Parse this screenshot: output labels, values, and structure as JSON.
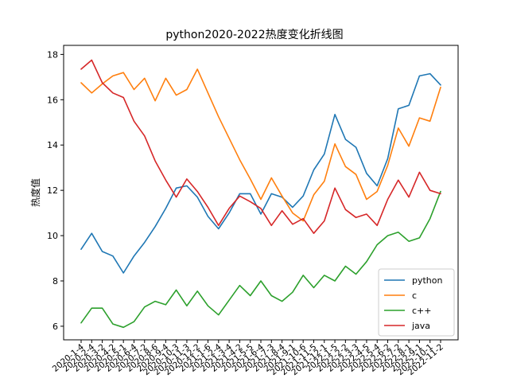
{
  "chart_data": {
    "type": "line",
    "title": "python2020-2022热度变化折线图",
    "xlabel": "",
    "ylabel": "热度值",
    "ylim": [
      5.4,
      18.4
    ],
    "yticks": [
      6,
      8,
      10,
      12,
      14,
      16,
      18
    ],
    "legend_position": "bottom-right",
    "grid": false,
    "categories": [
      "2020-1-4",
      "2020-2-4",
      "2020-3-2",
      "2020-4-2",
      "2020-5-1",
      "2020-6-4",
      "2020-7-2",
      "2020-8-6",
      "2020-9-4",
      "2020-10-3",
      "2020-11-3",
      "2020-12-2",
      "2021-1-6",
      "2021-2-4",
      "2021-3-4",
      "2021-4-2",
      "2021-5-5",
      "2021-6-4",
      "2021-7-3",
      "2021-8-4",
      "2021-9-1",
      "2021-10-6",
      "2021-11-5",
      "2021-12-1",
      "2022-1-5",
      "2022-2-2",
      "2022-3-3",
      "2022-4-5",
      "2022-5-4",
      "2022-6-2",
      "2022-7-2",
      "2022-8-1",
      "2022-9-1",
      "2022-10-1",
      "2022-11-2"
    ],
    "series": [
      {
        "name": "python",
        "color": "#1f77b4",
        "values": [
          9.4,
          10.1,
          9.3,
          9.1,
          8.35,
          9.1,
          9.7,
          10.4,
          11.2,
          12.1,
          12.2,
          11.7,
          10.85,
          10.3,
          11.0,
          11.85,
          11.85,
          10.95,
          11.85,
          11.7,
          11.25,
          11.75,
          12.9,
          13.6,
          15.35,
          14.25,
          13.9,
          12.75,
          12.2,
          13.4,
          15.6,
          15.75,
          17.05,
          17.15,
          16.65
        ]
      },
      {
        "name": "c",
        "color": "#ff7f0e",
        "values": [
          16.75,
          16.3,
          16.7,
          17.05,
          17.2,
          16.45,
          16.95,
          15.95,
          16.95,
          16.2,
          16.45,
          17.35,
          16.3,
          15.25,
          14.3,
          13.35,
          12.5,
          11.6,
          12.55,
          11.75,
          11.0,
          10.65,
          11.8,
          12.4,
          14.05,
          13.05,
          12.7,
          11.6,
          11.95,
          13.1,
          14.75,
          13.95,
          15.2,
          15.05,
          16.55
        ]
      },
      {
        "name": "c++",
        "color": "#2ca02c",
        "values": [
          6.15,
          6.8,
          6.8,
          6.1,
          5.95,
          6.2,
          6.85,
          7.1,
          6.95,
          7.6,
          6.9,
          7.55,
          6.9,
          6.5,
          7.15,
          7.8,
          7.35,
          8.0,
          7.35,
          7.1,
          7.5,
          8.25,
          7.7,
          8.25,
          8.0,
          8.65,
          8.3,
          8.85,
          9.6,
          10.0,
          10.15,
          9.75,
          9.9,
          10.75,
          11.95
        ]
      },
      {
        "name": "java",
        "color": "#d62728",
        "values": [
          17.35,
          17.75,
          16.75,
          16.3,
          16.1,
          15.05,
          14.4,
          13.3,
          12.45,
          11.7,
          12.5,
          11.95,
          11.25,
          10.45,
          11.2,
          11.75,
          11.5,
          11.2,
          10.45,
          11.1,
          10.5,
          10.75,
          10.1,
          10.65,
          12.1,
          11.15,
          10.8,
          10.95,
          10.45,
          11.6,
          12.45,
          11.7,
          12.8,
          12.0,
          11.85
        ]
      }
    ]
  }
}
